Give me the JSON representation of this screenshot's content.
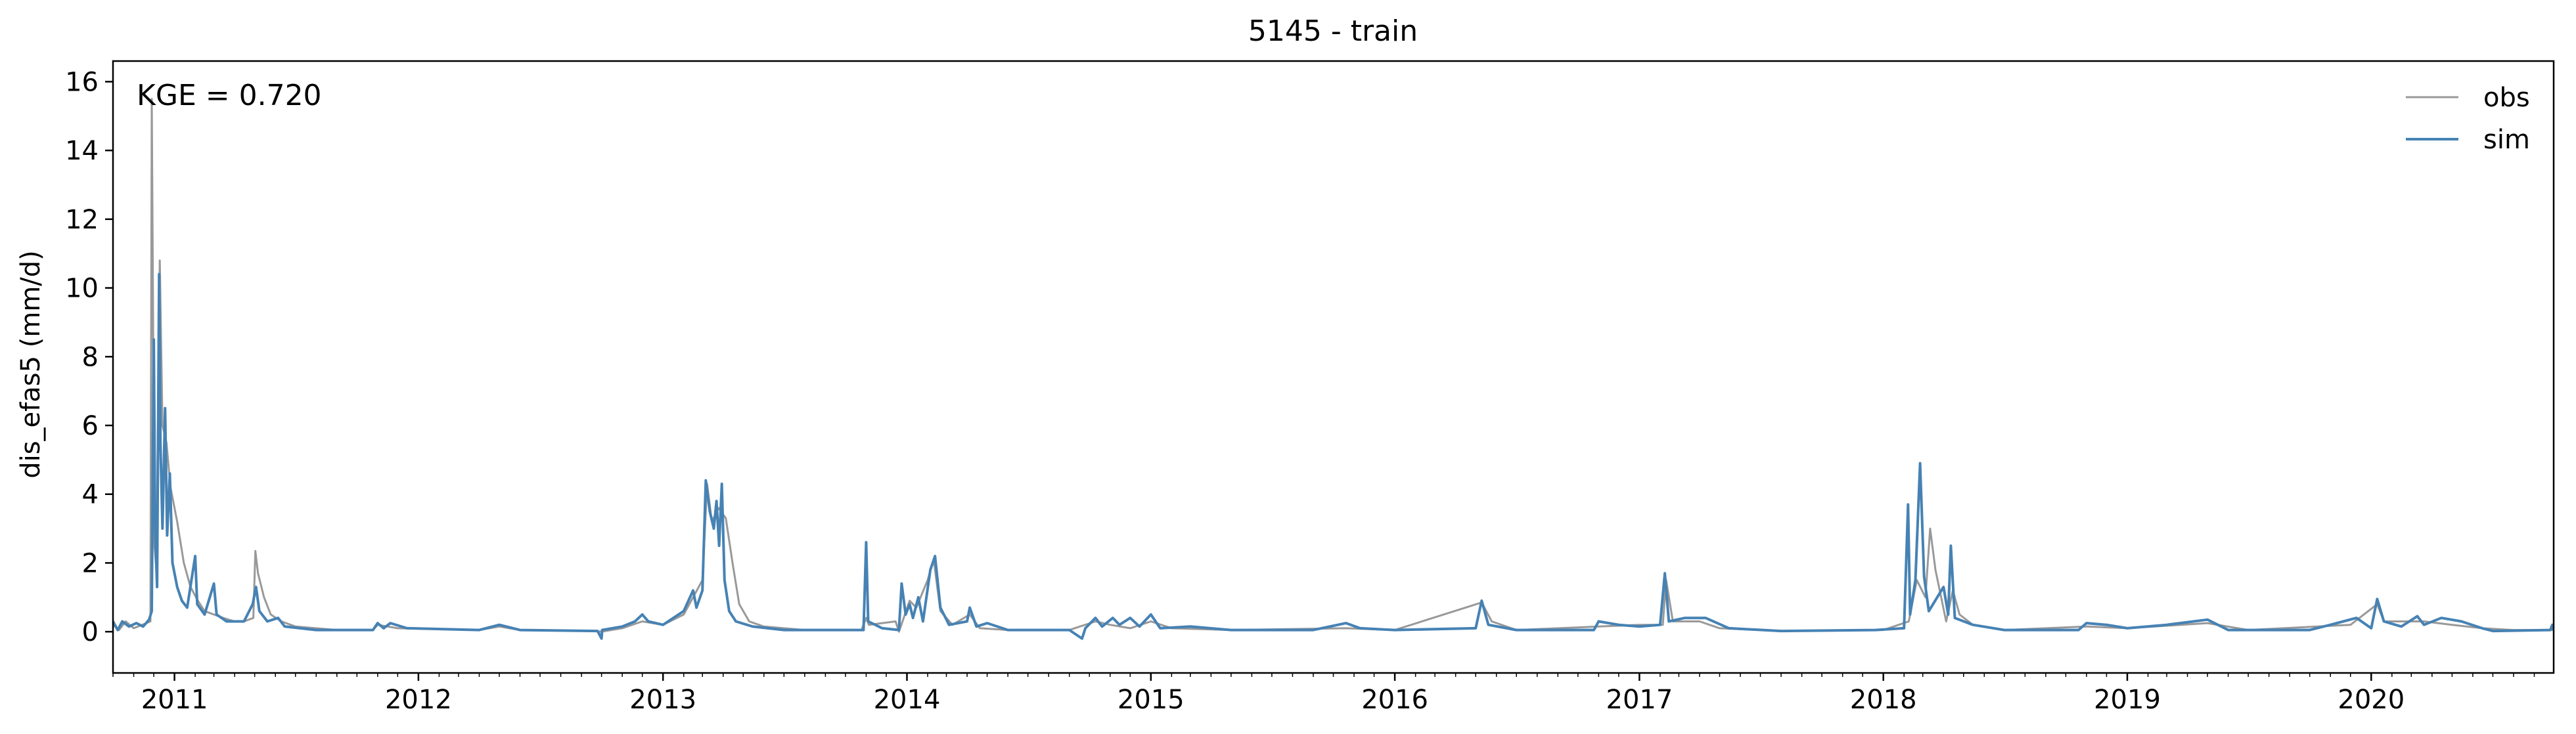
{
  "chart_data": {
    "type": "line",
    "title": "5145 - train",
    "ylabel": "dis_efas5 (mm/d)",
    "xlabel": "",
    "annotation": "KGE = 0.720",
    "xlim": [
      "2010-10-01",
      "2020-09-30"
    ],
    "ylim": [
      -1.2,
      16.6
    ],
    "yticks": [
      0,
      2,
      4,
      6,
      8,
      10,
      12,
      14,
      16
    ],
    "xticks": [
      {
        "date": "2011-01-01",
        "label": "2011"
      },
      {
        "date": "2012-01-01",
        "label": "2012"
      },
      {
        "date": "2013-01-01",
        "label": "2013"
      },
      {
        "date": "2014-01-01",
        "label": "2014"
      },
      {
        "date": "2015-01-01",
        "label": "2015"
      },
      {
        "date": "2016-01-01",
        "label": "2016"
      },
      {
        "date": "2017-01-01",
        "label": "2017"
      },
      {
        "date": "2018-01-01",
        "label": "2018"
      },
      {
        "date": "2019-01-01",
        "label": "2019"
      },
      {
        "date": "2020-01-01",
        "label": "2020"
      }
    ],
    "grid": false,
    "legend_position": "top-right",
    "series": [
      {
        "name": "obs",
        "color": "#999999",
        "points": [
          [
            "2010-10-01",
            0.2
          ],
          [
            "2010-10-10",
            0.05
          ],
          [
            "2010-10-20",
            0.3
          ],
          [
            "2010-11-01",
            0.1
          ],
          [
            "2010-11-20",
            0.25
          ],
          [
            "2010-11-26",
            0.3
          ],
          [
            "2010-11-28",
            15.5
          ],
          [
            "2010-12-02",
            2.5
          ],
          [
            "2010-12-05",
            1.8
          ],
          [
            "2010-12-08",
            7.5
          ],
          [
            "2010-12-10",
            10.8
          ],
          [
            "2010-12-14",
            6.0
          ],
          [
            "2010-12-20",
            5.5
          ],
          [
            "2010-12-26",
            4.2
          ],
          [
            "2011-01-05",
            3.2
          ],
          [
            "2011-01-15",
            2.0
          ],
          [
            "2011-01-25",
            1.3
          ],
          [
            "2011-02-05",
            0.9
          ],
          [
            "2011-02-15",
            0.6
          ],
          [
            "2011-03-01",
            0.5
          ],
          [
            "2011-03-15",
            0.4
          ],
          [
            "2011-04-01",
            0.3
          ],
          [
            "2011-04-15",
            0.3
          ],
          [
            "2011-04-29",
            0.4
          ],
          [
            "2011-05-02",
            2.35
          ],
          [
            "2011-05-06",
            1.7
          ],
          [
            "2011-05-15",
            1.0
          ],
          [
            "2011-05-25",
            0.5
          ],
          [
            "2011-06-10",
            0.3
          ],
          [
            "2011-07-01",
            0.15
          ],
          [
            "2011-09-01",
            0.05
          ],
          [
            "2011-10-25",
            0.05
          ],
          [
            "2011-11-01",
            0.2
          ],
          [
            "2011-12-01",
            0.1
          ],
          [
            "2012-04-01",
            0.05
          ],
          [
            "2012-05-01",
            0.15
          ],
          [
            "2012-06-01",
            0.05
          ],
          [
            "2012-09-20",
            0.02
          ],
          [
            "2012-10-01",
            0.0
          ],
          [
            "2012-11-01",
            0.1
          ],
          [
            "2012-12-01",
            0.3
          ],
          [
            "2013-01-01",
            0.2
          ],
          [
            "2013-02-01",
            0.5
          ],
          [
            "2013-03-01",
            1.5
          ],
          [
            "2013-03-08",
            4.3
          ],
          [
            "2013-03-15",
            3.2
          ],
          [
            "2013-03-25",
            3.6
          ],
          [
            "2013-04-05",
            3.3
          ],
          [
            "2013-04-15",
            2.0
          ],
          [
            "2013-04-25",
            0.8
          ],
          [
            "2013-05-10",
            0.3
          ],
          [
            "2013-06-01",
            0.15
          ],
          [
            "2013-08-01",
            0.05
          ],
          [
            "2013-10-25",
            0.05
          ],
          [
            "2013-11-01",
            0.4
          ],
          [
            "2013-11-05",
            0.2
          ],
          [
            "2013-12-15",
            0.3
          ],
          [
            "2013-12-20",
            0.0
          ],
          [
            "2014-01-05",
            0.9
          ],
          [
            "2014-01-15",
            0.7
          ],
          [
            "2014-02-01",
            1.5
          ],
          [
            "2014-02-10",
            2.1
          ],
          [
            "2014-02-20",
            0.6
          ],
          [
            "2014-03-10",
            0.2
          ],
          [
            "2014-04-05",
            0.5
          ],
          [
            "2014-04-20",
            0.1
          ],
          [
            "2014-06-01",
            0.05
          ],
          [
            "2014-09-01",
            0.05
          ],
          [
            "2014-10-10",
            0.3
          ],
          [
            "2014-11-01",
            0.2
          ],
          [
            "2014-12-01",
            0.1
          ],
          [
            "2015-01-01",
            0.3
          ],
          [
            "2015-02-01",
            0.1
          ],
          [
            "2015-05-01",
            0.05
          ],
          [
            "2015-10-20",
            0.1
          ],
          [
            "2016-01-01",
            0.05
          ],
          [
            "2016-05-10",
            0.85
          ],
          [
            "2016-05-25",
            0.3
          ],
          [
            "2016-07-01",
            0.05
          ],
          [
            "2016-11-01",
            0.15
          ],
          [
            "2017-01-01",
            0.2
          ],
          [
            "2017-02-05",
            0.2
          ],
          [
            "2017-02-10",
            1.5
          ],
          [
            "2017-02-20",
            0.3
          ],
          [
            "2017-04-01",
            0.3
          ],
          [
            "2017-05-01",
            0.1
          ],
          [
            "2017-08-01",
            0.02
          ],
          [
            "2018-01-01",
            0.05
          ],
          [
            "2018-02-08",
            0.3
          ],
          [
            "2018-02-20",
            1.5
          ],
          [
            "2018-03-05",
            1.0
          ],
          [
            "2018-03-12",
            3.0
          ],
          [
            "2018-03-20",
            1.8
          ],
          [
            "2018-04-05",
            0.3
          ],
          [
            "2018-04-15",
            1.2
          ],
          [
            "2018-04-25",
            0.5
          ],
          [
            "2018-05-15",
            0.2
          ],
          [
            "2018-07-01",
            0.05
          ],
          [
            "2018-11-01",
            0.15
          ],
          [
            "2019-01-01",
            0.1
          ],
          [
            "2019-05-01",
            0.25
          ],
          [
            "2019-07-01",
            0.05
          ],
          [
            "2019-12-01",
            0.2
          ],
          [
            "2020-01-10",
            0.8
          ],
          [
            "2020-01-20",
            0.3
          ],
          [
            "2020-03-20",
            0.3
          ],
          [
            "2020-05-01",
            0.2
          ],
          [
            "2020-06-15",
            0.1
          ],
          [
            "2020-08-01",
            0.05
          ],
          [
            "2020-09-30",
            0.05
          ]
        ]
      },
      {
        "name": "sim",
        "color": "#4682b4",
        "points": [
          [
            "2010-10-01",
            0.3
          ],
          [
            "2010-10-08",
            0.05
          ],
          [
            "2010-10-15",
            0.3
          ],
          [
            "2010-10-25",
            0.15
          ],
          [
            "2010-11-05",
            0.25
          ],
          [
            "2010-11-15",
            0.15
          ],
          [
            "2010-11-24",
            0.35
          ],
          [
            "2010-11-28",
            0.6
          ],
          [
            "2010-12-01",
            8.5
          ],
          [
            "2010-12-03",
            3.0
          ],
          [
            "2010-12-06",
            1.3
          ],
          [
            "2010-12-09",
            10.4
          ],
          [
            "2010-12-11",
            5.5
          ],
          [
            "2010-12-14",
            3.0
          ],
          [
            "2010-12-18",
            6.5
          ],
          [
            "2010-12-21",
            2.8
          ],
          [
            "2010-12-25",
            4.6
          ],
          [
            "2010-12-29",
            2.0
          ],
          [
            "2011-01-05",
            1.3
          ],
          [
            "2011-01-12",
            0.9
          ],
          [
            "2011-01-20",
            0.7
          ],
          [
            "2011-02-01",
            2.2
          ],
          [
            "2011-02-04",
            0.8
          ],
          [
            "2011-02-15",
            0.5
          ],
          [
            "2011-03-01",
            1.4
          ],
          [
            "2011-03-05",
            0.5
          ],
          [
            "2011-03-20",
            0.3
          ],
          [
            "2011-04-15",
            0.3
          ],
          [
            "2011-04-28",
            0.8
          ],
          [
            "2011-05-03",
            1.3
          ],
          [
            "2011-05-08",
            0.6
          ],
          [
            "2011-05-20",
            0.3
          ],
          [
            "2011-06-05",
            0.4
          ],
          [
            "2011-06-15",
            0.15
          ],
          [
            "2011-08-01",
            0.05
          ],
          [
            "2011-10-25",
            0.05
          ],
          [
            "2011-11-01",
            0.25
          ],
          [
            "2011-11-10",
            0.1
          ],
          [
            "2011-11-20",
            0.25
          ],
          [
            "2011-12-15",
            0.1
          ],
          [
            "2012-04-01",
            0.05
          ],
          [
            "2012-05-01",
            0.2
          ],
          [
            "2012-06-01",
            0.05
          ],
          [
            "2012-09-25",
            0.02
          ],
          [
            "2012-10-01",
            -0.2
          ],
          [
            "2012-10-02",
            0.05
          ],
          [
            "2012-11-01",
            0.15
          ],
          [
            "2012-11-20",
            0.3
          ],
          [
            "2012-12-01",
            0.5
          ],
          [
            "2012-12-10",
            0.3
          ],
          [
            "2013-01-01",
            0.2
          ],
          [
            "2013-02-01",
            0.6
          ],
          [
            "2013-02-15",
            1.2
          ],
          [
            "2013-02-20",
            0.7
          ],
          [
            "2013-03-01",
            1.2
          ],
          [
            "2013-03-06",
            4.4
          ],
          [
            "2013-03-12",
            3.5
          ],
          [
            "2013-03-18",
            3.0
          ],
          [
            "2013-03-22",
            3.8
          ],
          [
            "2013-03-26",
            2.5
          ],
          [
            "2013-03-30",
            4.3
          ],
          [
            "2013-04-03",
            1.5
          ],
          [
            "2013-04-10",
            0.6
          ],
          [
            "2013-04-20",
            0.3
          ],
          [
            "2013-05-15",
            0.15
          ],
          [
            "2013-07-01",
            0.05
          ],
          [
            "2013-10-28",
            0.05
          ],
          [
            "2013-11-01",
            2.6
          ],
          [
            "2013-11-04",
            0.3
          ],
          [
            "2013-11-25",
            0.1
          ],
          [
            "2013-12-20",
            0.05
          ],
          [
            "2013-12-24",
            1.4
          ],
          [
            "2013-12-30",
            0.5
          ],
          [
            "2014-01-05",
            0.8
          ],
          [
            "2014-01-10",
            0.4
          ],
          [
            "2014-01-18",
            1.0
          ],
          [
            "2014-01-25",
            0.3
          ],
          [
            "2014-02-05",
            1.8
          ],
          [
            "2014-02-12",
            2.2
          ],
          [
            "2014-02-20",
            0.7
          ],
          [
            "2014-03-05",
            0.2
          ],
          [
            "2014-04-01",
            0.3
          ],
          [
            "2014-04-05",
            0.7
          ],
          [
            "2014-04-15",
            0.15
          ],
          [
            "2014-05-01",
            0.25
          ],
          [
            "2014-06-01",
            0.05
          ],
          [
            "2014-09-01",
            0.05
          ],
          [
            "2014-09-20",
            -0.2
          ],
          [
            "2014-09-25",
            0.1
          ],
          [
            "2014-10-10",
            0.4
          ],
          [
            "2014-10-20",
            0.15
          ],
          [
            "2014-11-05",
            0.4
          ],
          [
            "2014-11-15",
            0.2
          ],
          [
            "2014-12-01",
            0.4
          ],
          [
            "2014-12-15",
            0.15
          ],
          [
            "2015-01-01",
            0.5
          ],
          [
            "2015-01-15",
            0.1
          ],
          [
            "2015-03-01",
            0.15
          ],
          [
            "2015-05-01",
            0.05
          ],
          [
            "2015-09-01",
            0.05
          ],
          [
            "2015-10-20",
            0.25
          ],
          [
            "2015-11-10",
            0.1
          ],
          [
            "2016-01-01",
            0.05
          ],
          [
            "2016-05-01",
            0.1
          ],
          [
            "2016-05-10",
            0.9
          ],
          [
            "2016-05-20",
            0.2
          ],
          [
            "2016-07-01",
            0.05
          ],
          [
            "2016-10-25",
            0.05
          ],
          [
            "2016-11-01",
            0.3
          ],
          [
            "2016-12-01",
            0.2
          ],
          [
            "2017-01-01",
            0.15
          ],
          [
            "2017-02-01",
            0.2
          ],
          [
            "2017-02-08",
            1.7
          ],
          [
            "2017-02-14",
            0.3
          ],
          [
            "2017-03-10",
            0.4
          ],
          [
            "2017-04-10",
            0.4
          ],
          [
            "2017-05-15",
            0.1
          ],
          [
            "2017-08-01",
            0.02
          ],
          [
            "2017-12-20",
            0.05
          ],
          [
            "2018-02-01",
            0.1
          ],
          [
            "2018-02-07",
            3.7
          ],
          [
            "2018-02-10",
            0.5
          ],
          [
            "2018-02-18",
            1.5
          ],
          [
            "2018-02-25",
            4.9
          ],
          [
            "2018-03-03",
            1.6
          ],
          [
            "2018-03-10",
            0.6
          ],
          [
            "2018-04-01",
            1.3
          ],
          [
            "2018-04-08",
            0.5
          ],
          [
            "2018-04-12",
            2.5
          ],
          [
            "2018-04-18",
            0.4
          ],
          [
            "2018-05-15",
            0.2
          ],
          [
            "2018-07-01",
            0.05
          ],
          [
            "2018-10-20",
            0.05
          ],
          [
            "2018-11-01",
            0.25
          ],
          [
            "2018-12-01",
            0.2
          ],
          [
            "2019-01-01",
            0.1
          ],
          [
            "2019-03-01",
            0.2
          ],
          [
            "2019-05-01",
            0.35
          ],
          [
            "2019-06-01",
            0.05
          ],
          [
            "2019-10-01",
            0.05
          ],
          [
            "2019-11-01",
            0.2
          ],
          [
            "2019-12-10",
            0.4
          ],
          [
            "2020-01-01",
            0.1
          ],
          [
            "2020-01-10",
            0.95
          ],
          [
            "2020-01-20",
            0.3
          ],
          [
            "2020-02-15",
            0.15
          ],
          [
            "2020-03-10",
            0.45
          ],
          [
            "2020-03-20",
            0.2
          ],
          [
            "2020-04-15",
            0.4
          ],
          [
            "2020-05-15",
            0.3
          ],
          [
            "2020-06-15",
            0.1
          ],
          [
            "2020-07-01",
            0.02
          ],
          [
            "2020-09-25",
            0.05
          ],
          [
            "2020-09-28",
            0.2
          ],
          [
            "2020-09-30",
            0.05
          ]
        ]
      }
    ]
  }
}
